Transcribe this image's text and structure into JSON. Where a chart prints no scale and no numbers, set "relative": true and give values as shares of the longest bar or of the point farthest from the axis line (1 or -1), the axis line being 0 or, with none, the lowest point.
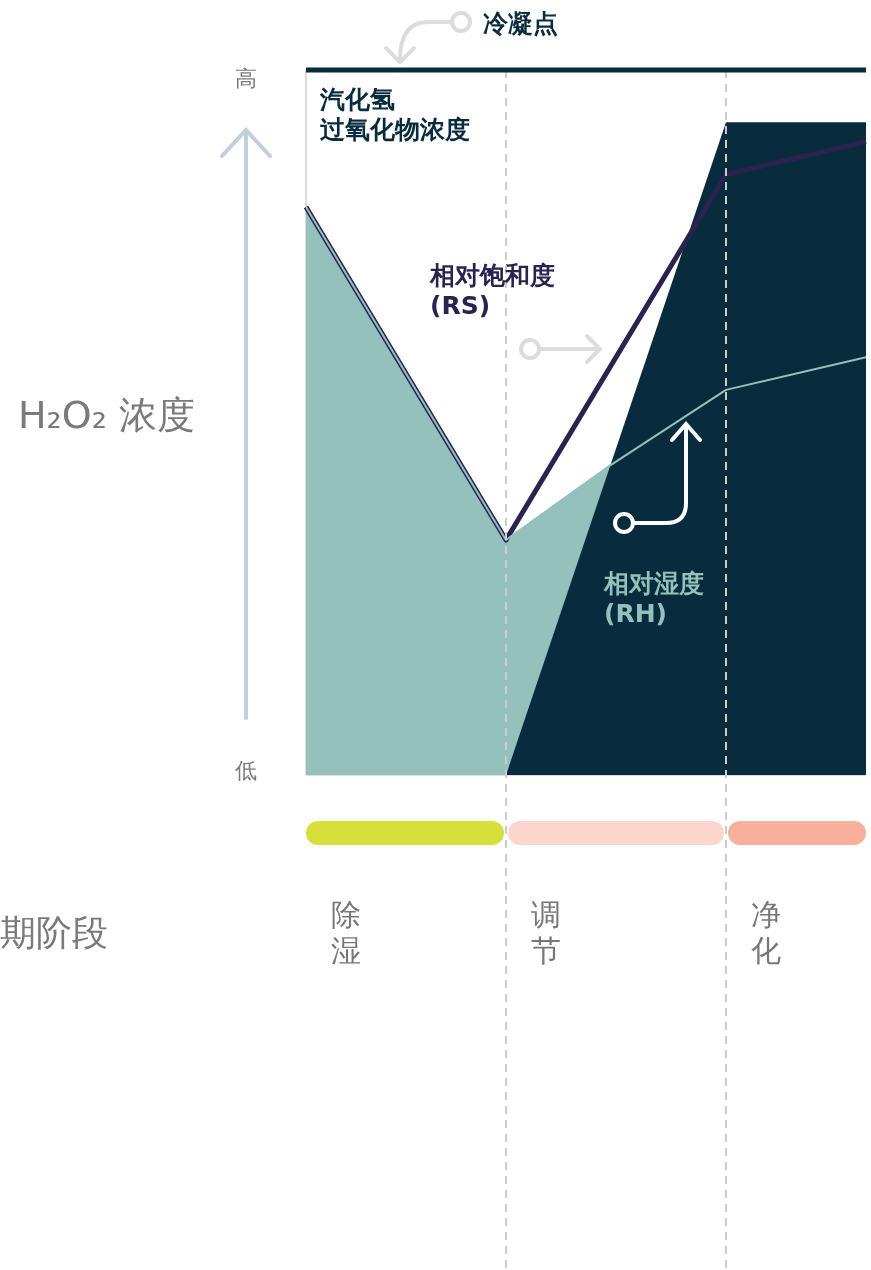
{
  "chart_data": {
    "type": "area",
    "relative": true,
    "ylabel": "H₂O₂ 浓度",
    "categories": [
      null,
      null,
      "除湿",
      null,
      null,
      null,
      null,
      null,
      null,
      null,
      null,
      null,
      "调节",
      null,
      null,
      null,
      null,
      null,
      null,
      null,
      null,
      null,
      null,
      "净化",
      null,
      null,
      null,
      null,
      null
    ],
    "series": [
      {
        "name": "相对湿度(RH)",
        "color": "#94c1bb",
        "values": [
          0.87,
          null,
          null,
          null,
          null,
          null,
          null,
          null,
          null,
          null,
          0.36,
          null,
          null,
          null,
          null,
          0.47,
          null,
          null,
          null,
          null,
          null,
          0.59,
          null,
          null,
          null,
          null,
          null,
          null,
          0.64
        ]
      },
      {
        "name": "汽化氢过氧化物浓度",
        "color": "#082b3e",
        "values": [
          null,
          null,
          null,
          null,
          null,
          null,
          null,
          null,
          null,
          null,
          0,
          null,
          null,
          null,
          null,
          null,
          null,
          null,
          null,
          null,
          null,
          1,
          null,
          null,
          null,
          null,
          null,
          null,
          1
        ]
      },
      {
        "name": "相对饱和度(RS)",
        "type": "line",
        "color": "#2a2350",
        "values": [
          0.87,
          null,
          null,
          null,
          null,
          null,
          null,
          null,
          null,
          null,
          0.36,
          null,
          null,
          null,
          null,
          null,
          null,
          null,
          null,
          null,
          null,
          0.92,
          null,
          null,
          null,
          null,
          null,
          null,
          0.97
        ]
      }
    ],
    "annotations": [
      "高",
      "低",
      "冷凝点",
      "期阶段"
    ]
  }
}
